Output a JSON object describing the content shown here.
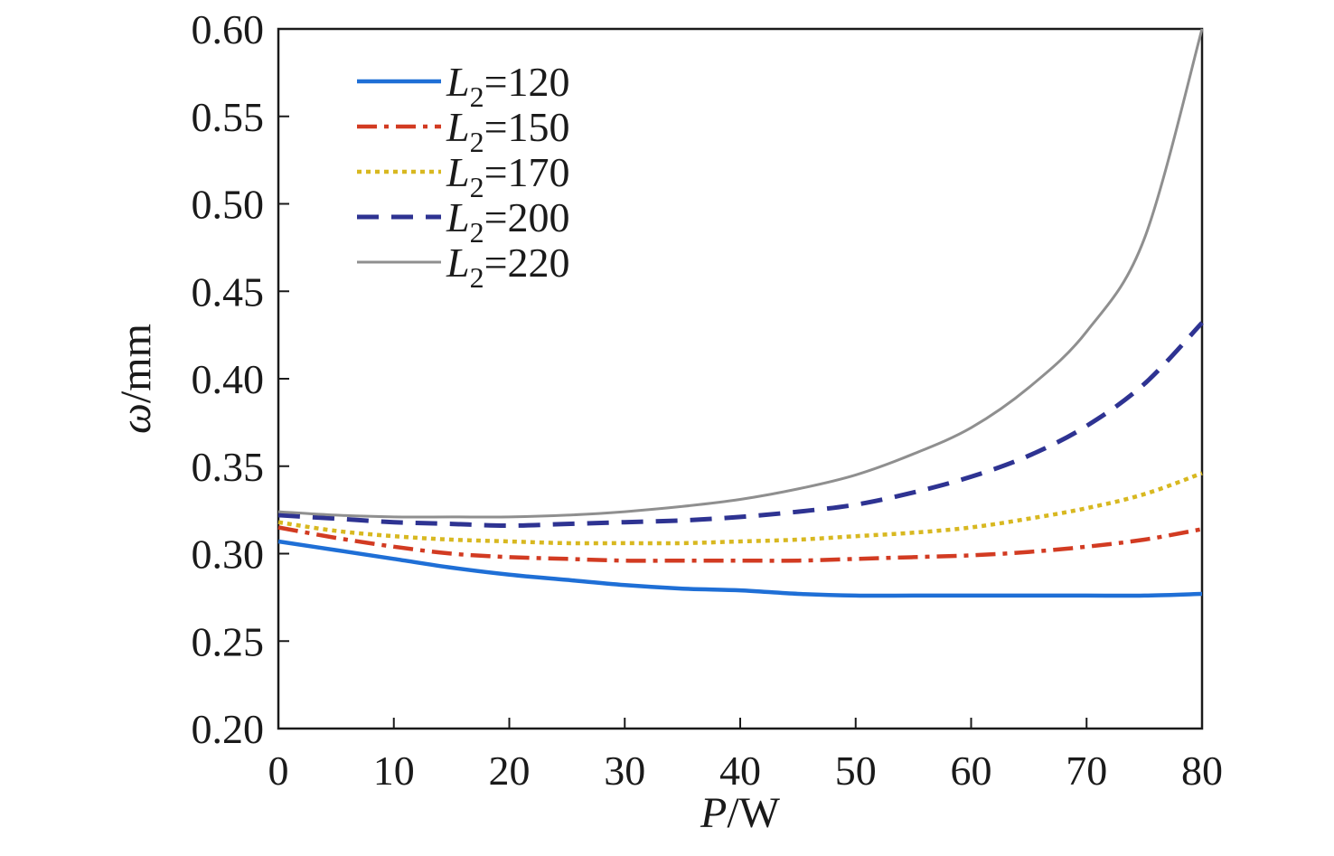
{
  "chart_data": {
    "type": "line",
    "xlabel": {
      "var": "P",
      "unit": "/W"
    },
    "ylabel": {
      "var": "ω",
      "unit": "/mm"
    },
    "xlim": [
      0,
      80
    ],
    "ylim": [
      0.2,
      0.6
    ],
    "xticks": [
      "0",
      "10",
      "20",
      "30",
      "40",
      "50",
      "60",
      "70",
      "80"
    ],
    "yticks": [
      "0.20",
      "0.25",
      "0.30",
      "0.35",
      "0.40",
      "0.45",
      "0.50",
      "0.55",
      "0.60"
    ],
    "grid": false,
    "legend_position": "top-left",
    "x": [
      0,
      5,
      10,
      15,
      20,
      25,
      30,
      35,
      40,
      45,
      50,
      55,
      60,
      65,
      70,
      75,
      80
    ],
    "series": [
      {
        "name_var": "L",
        "name_sub": "2",
        "name_value": "=120",
        "style": "solid",
        "color": "#1f6fd6",
        "values": [
          0.307,
          0.302,
          0.297,
          0.292,
          0.288,
          0.285,
          0.282,
          0.28,
          0.279,
          0.277,
          0.276,
          0.276,
          0.276,
          0.276,
          0.276,
          0.276,
          0.277
        ]
      },
      {
        "name_var": "L",
        "name_sub": "2",
        "name_value": "=150",
        "style": "dashdot",
        "color": "#d23b22",
        "values": [
          0.315,
          0.309,
          0.304,
          0.3,
          0.298,
          0.297,
          0.296,
          0.296,
          0.296,
          0.296,
          0.297,
          0.298,
          0.299,
          0.301,
          0.304,
          0.308,
          0.314
        ]
      },
      {
        "name_var": "L",
        "name_sub": "2",
        "name_value": "=170",
        "style": "dotted",
        "color": "#d8b820",
        "values": [
          0.318,
          0.313,
          0.31,
          0.308,
          0.307,
          0.306,
          0.306,
          0.306,
          0.307,
          0.308,
          0.31,
          0.312,
          0.315,
          0.32,
          0.326,
          0.334,
          0.346
        ]
      },
      {
        "name_var": "L",
        "name_sub": "2",
        "name_value": "=200",
        "style": "dashed",
        "color": "#2e3392",
        "values": [
          0.322,
          0.32,
          0.318,
          0.317,
          0.316,
          0.317,
          0.318,
          0.319,
          0.321,
          0.324,
          0.328,
          0.335,
          0.344,
          0.356,
          0.373,
          0.397,
          0.432
        ]
      },
      {
        "name_var": "L",
        "name_sub": "2",
        "name_value": "=220",
        "style": "solid-thin",
        "color": "#8f8f8f",
        "values": [
          0.324,
          0.322,
          0.321,
          0.321,
          0.321,
          0.322,
          0.324,
          0.327,
          0.331,
          0.337,
          0.345,
          0.357,
          0.372,
          0.395,
          0.427,
          0.48,
          0.6
        ]
      }
    ]
  }
}
